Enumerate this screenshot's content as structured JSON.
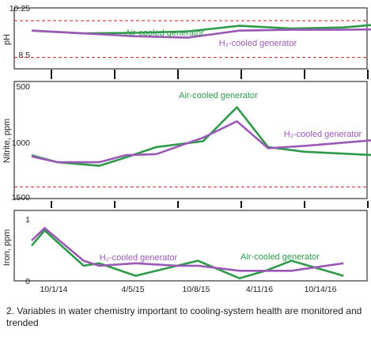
{
  "caption": "2. Variables in water chemistry important to cooling-system health are monitored and trended",
  "colors": {
    "air": "#2e9a4a",
    "h2": "#9b59b6",
    "limit": "#cc2020",
    "frame": "#333333"
  },
  "x_tick_labels": [
    "10/1/14",
    "4/5/15",
    "10/8/15",
    "4/11/16",
    "10/14/16"
  ],
  "chart_data": [
    {
      "type": "line",
      "ylabel": "pH",
      "ytick_labels": [
        "10.25",
        "8.5"
      ],
      "ylim": [
        8.1,
        10.25
      ],
      "limit_lines": [
        9.8,
        8.5
      ],
      "series": [
        {
          "name": "Air-cooled generator",
          "x": [
            0,
            1,
            2,
            3,
            4,
            5,
            6,
            7,
            8
          ],
          "y": [
            9.45,
            9.35,
            9.37,
            9.42,
            9.62,
            9.52,
            9.56,
            9.72,
            9.7
          ]
        },
        {
          "name": "H2-cooled generator",
          "x": [
            0,
            1,
            2,
            3,
            4,
            5,
            6,
            7,
            8
          ],
          "y": [
            9.45,
            9.35,
            9.25,
            9.2,
            9.45,
            9.48,
            9.48,
            9.5,
            9.5
          ]
        }
      ],
      "labels": [
        {
          "series": "Air-cooled generator",
          "text": "Air-cooled generator"
        },
        {
          "series": "H2-cooled generator",
          "text": "H₂-cooled generator"
        }
      ]
    },
    {
      "type": "line",
      "ylabel": "Nitrite, ppm",
      "ytick_labels": [
        "500",
        "1000",
        "1500"
      ],
      "ylim": [
        1500,
        500
      ],
      "reversed": true,
      "limit_lines": [
        1400
      ],
      "series": [
        {
          "name": "Air-cooled generator",
          "x": [
            0,
            0.5,
            1.3,
            1.8,
            2.4,
            3.3,
            3.95,
            4.55,
            5.25,
            6.6
          ],
          "y": [
            1130,
            1190,
            1220,
            1150,
            1060,
            1010,
            720,
            1060,
            1100,
            1130
          ]
        },
        {
          "name": "H2-cooled generator",
          "x": [
            0,
            0.5,
            1.3,
            1.8,
            2.4,
            3.3,
            3.95,
            4.55,
            5.25,
            6.6
          ],
          "y": [
            1140,
            1190,
            1190,
            1130,
            1120,
            980,
            840,
            1070,
            1050,
            1000
          ]
        }
      ],
      "labels": [
        {
          "series": "Air-cooled generator",
          "text": "Air-cooled generator"
        },
        {
          "series": "H2-cooled generator",
          "text": "H₂-cooled generator"
        }
      ]
    },
    {
      "type": "line",
      "ylabel": "Iron, ppm",
      "ytick_labels": [
        "1",
        "0"
      ],
      "ylim": [
        0,
        1.4
      ],
      "series": [
        {
          "name": "Air-cooled generator",
          "x": [
            0,
            0.25,
            1,
            1.3,
            2,
            2.8,
            3.2,
            4,
            4.5,
            5,
            6
          ],
          "y": [
            0.7,
            1.0,
            0.3,
            0.35,
            0.1,
            0.3,
            0.4,
            0.05,
            0.2,
            0.4,
            0.1
          ]
        },
        {
          "name": "H2-cooled generator",
          "x": [
            0,
            0.25,
            1,
            1.3,
            2,
            2.8,
            3.2,
            4,
            4.5,
            5,
            6
          ],
          "y": [
            0.8,
            1.05,
            0.4,
            0.3,
            0.35,
            0.3,
            0.3,
            0.2,
            0.2,
            0.2,
            0.35
          ]
        }
      ],
      "labels": [
        {
          "series": "H2-cooled generator",
          "text": "H₂-cooled generator"
        },
        {
          "series": "Air-cooled generator",
          "text": "Air-cooled generator"
        }
      ]
    }
  ]
}
